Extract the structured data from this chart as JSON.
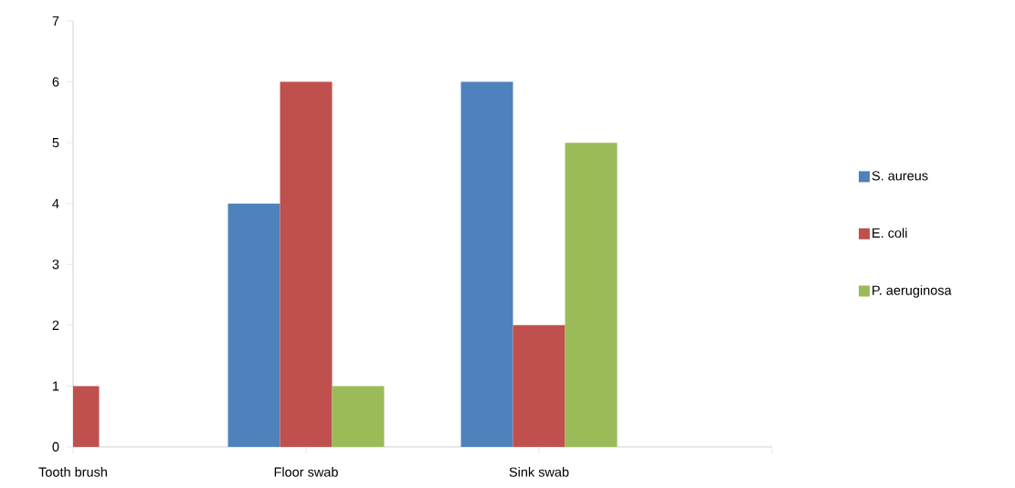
{
  "chart_data": {
    "type": "bar",
    "categories": [
      "Tooth  brush",
      "Floor swab",
      "Sink swab"
    ],
    "series": [
      {
        "name": "S. aureus",
        "color": "#4f81bd",
        "values": [
          0,
          4,
          6
        ]
      },
      {
        "name": "E. coli",
        "color": "#c0504d",
        "values": [
          1,
          6,
          2
        ]
      },
      {
        "name": "P. aeruginosa",
        "color": "#9bbb59",
        "values": [
          0,
          1,
          5
        ]
      }
    ],
    "ylim": [
      0,
      7
    ],
    "yticks": [
      0,
      1,
      2,
      3,
      4,
      5,
      6,
      7
    ],
    "legend": "right",
    "grid": false
  }
}
